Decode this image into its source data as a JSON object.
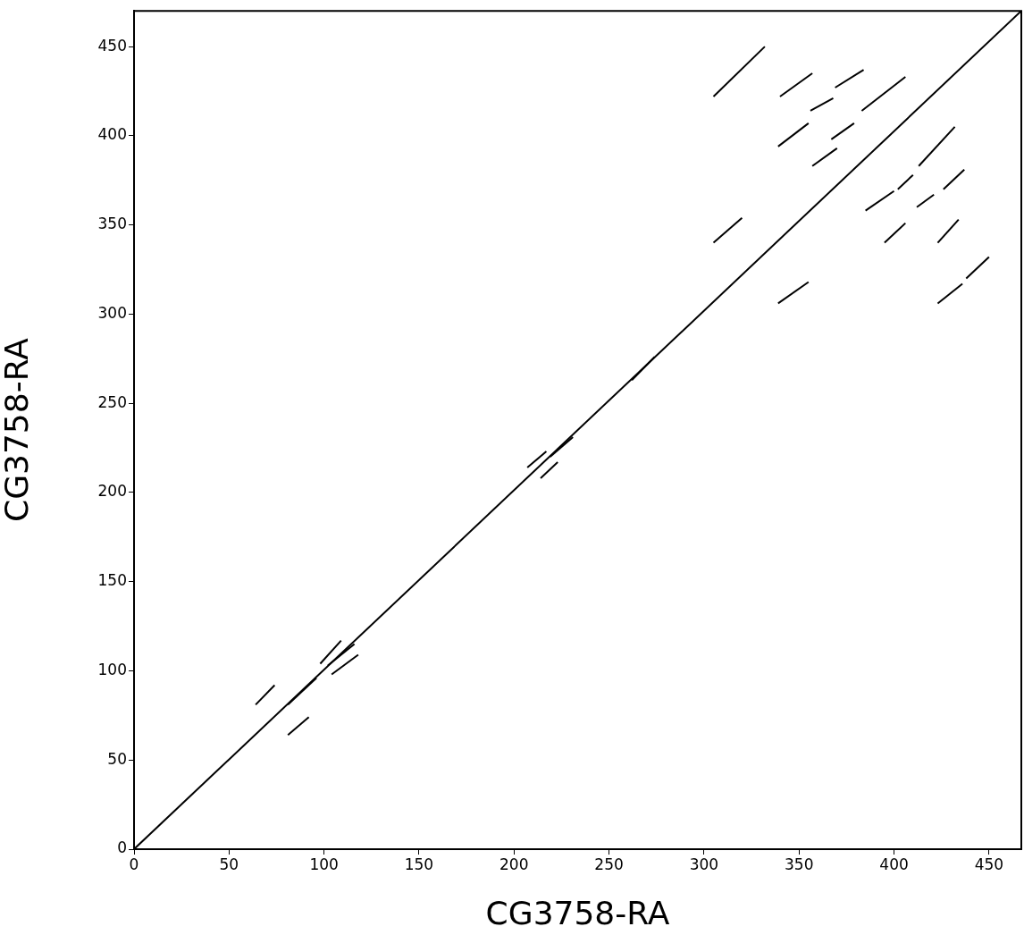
{
  "chart_data": {
    "type": "line",
    "xlabel": "CG3758-RA",
    "ylabel": "CG3758-RA",
    "xlim": [
      0,
      467
    ],
    "ylim": [
      0,
      470
    ],
    "xticks": [
      0,
      50,
      100,
      150,
      200,
      250,
      300,
      350,
      400,
      450
    ],
    "yticks": [
      0,
      50,
      100,
      150,
      200,
      250,
      300,
      350,
      400,
      450
    ],
    "grid": false,
    "legend": false,
    "marker": "none",
    "line_style": "solid",
    "series": [
      {
        "color": "#000000",
        "x": [
          0,
          467
        ],
        "values": [
          0,
          470
        ]
      },
      {
        "color": "#000000",
        "x": [
          305,
          332
        ],
        "values": [
          422,
          450
        ]
      },
      {
        "color": "#000000",
        "x": [
          340,
          357
        ],
        "values": [
          422,
          435
        ]
      },
      {
        "color": "#000000",
        "x": [
          369,
          384
        ],
        "values": [
          427,
          437
        ]
      },
      {
        "color": "#000000",
        "x": [
          356,
          368
        ],
        "values": [
          414,
          421
        ]
      },
      {
        "color": "#000000",
        "x": [
          383,
          406
        ],
        "values": [
          414,
          433
        ]
      },
      {
        "color": "#000000",
        "x": [
          339,
          355
        ],
        "values": [
          394,
          407
        ]
      },
      {
        "color": "#000000",
        "x": [
          367,
          379
        ],
        "values": [
          398,
          407
        ]
      },
      {
        "color": "#000000",
        "x": [
          357,
          370
        ],
        "values": [
          383,
          393
        ]
      },
      {
        "color": "#000000",
        "x": [
          413,
          432
        ],
        "values": [
          383,
          405
        ]
      },
      {
        "color": "#000000",
        "x": [
          385,
          400
        ],
        "values": [
          358,
          369
        ]
      },
      {
        "color": "#000000",
        "x": [
          402,
          410
        ],
        "values": [
          370,
          378
        ]
      },
      {
        "color": "#000000",
        "x": [
          412,
          421
        ],
        "values": [
          360,
          367
        ]
      },
      {
        "color": "#000000",
        "x": [
          426,
          437
        ],
        "values": [
          370,
          381
        ]
      },
      {
        "color": "#000000",
        "x": [
          395,
          406
        ],
        "values": [
          340,
          351
        ]
      },
      {
        "color": "#000000",
        "x": [
          423,
          434
        ],
        "values": [
          340,
          353
        ]
      },
      {
        "color": "#000000",
        "x": [
          305,
          320
        ],
        "values": [
          340,
          354
        ]
      },
      {
        "color": "#000000",
        "x": [
          339,
          355
        ],
        "values": [
          306,
          318
        ]
      },
      {
        "color": "#000000",
        "x": [
          423,
          436
        ],
        "values": [
          306,
          317
        ]
      },
      {
        "color": "#000000",
        "x": [
          438,
          450
        ],
        "values": [
          320,
          332
        ]
      },
      {
        "color": "#000000",
        "x": [
          262,
          274
        ],
        "values": [
          263,
          276
        ]
      },
      {
        "color": "#000000",
        "x": [
          219,
          231
        ],
        "values": [
          220,
          231
        ]
      },
      {
        "color": "#000000",
        "x": [
          207,
          217
        ],
        "values": [
          214,
          223
        ]
      },
      {
        "color": "#000000",
        "x": [
          214,
          223
        ],
        "values": [
          208,
          217
        ]
      },
      {
        "color": "#000000",
        "x": [
          64,
          74
        ],
        "values": [
          81,
          92
        ]
      },
      {
        "color": "#000000",
        "x": [
          81,
          92
        ],
        "values": [
          64,
          74
        ]
      },
      {
        "color": "#000000",
        "x": [
          81,
          96
        ],
        "values": [
          81,
          96
        ]
      },
      {
        "color": "#000000",
        "x": [
          102,
          116
        ],
        "values": [
          103,
          115
        ]
      },
      {
        "color": "#000000",
        "x": [
          98,
          109
        ],
        "values": [
          104,
          117
        ]
      },
      {
        "color": "#000000",
        "x": [
          104,
          118
        ],
        "values": [
          98,
          109
        ]
      }
    ]
  }
}
